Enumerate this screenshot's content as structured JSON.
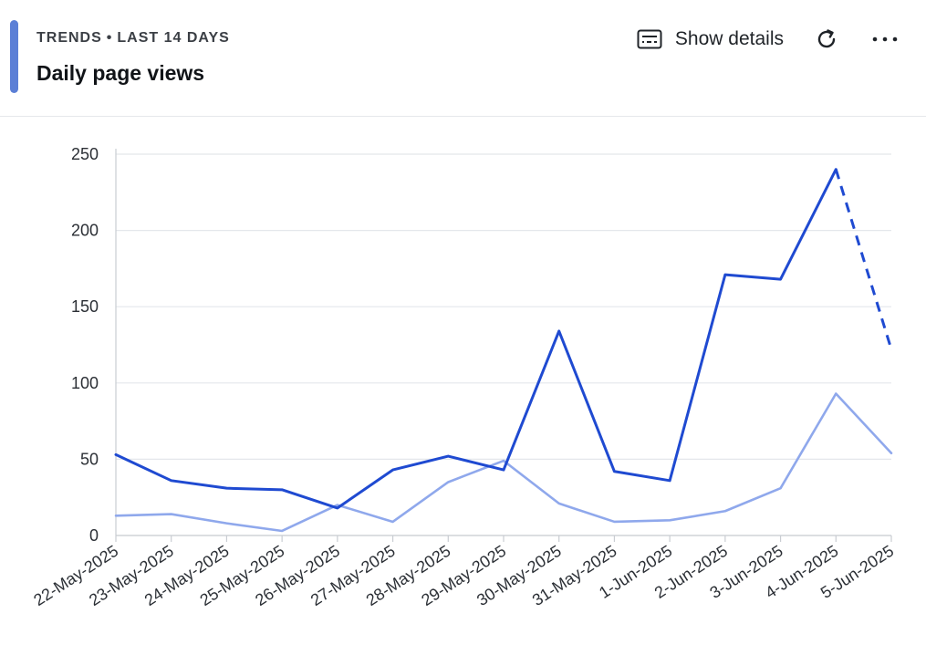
{
  "header": {
    "eyebrow_part1": "TRENDS",
    "eyebrow_dot": "•",
    "eyebrow_part2": "LAST 14 DAYS",
    "title": "Daily page views",
    "show_details_label": "Show details",
    "icons": {
      "show_details": "details-card-icon",
      "refresh": "refresh-icon",
      "more": "more-horizontal-icon"
    },
    "accent_color": "#5b7fd6"
  },
  "chart_data": {
    "type": "line",
    "title": "Daily page views",
    "xlabel": "",
    "ylabel": "",
    "ylim": [
      0,
      250
    ],
    "yticks": [
      0,
      50,
      100,
      150,
      200,
      250
    ],
    "grid": true,
    "legend": "none",
    "categories": [
      "22-May-2025",
      "23-May-2025",
      "24-May-2025",
      "25-May-2025",
      "26-May-2025",
      "27-May-2025",
      "28-May-2025",
      "29-May-2025",
      "30-May-2025",
      "31-May-2025",
      "1-Jun-2025",
      "2-Jun-2025",
      "3-Jun-2025",
      "4-Jun-2025",
      "5-Jun-2025"
    ],
    "series": [
      {
        "color": "#1f4ad1",
        "values": [
          53,
          36,
          31,
          30,
          18,
          43,
          52,
          43,
          134,
          42,
          36,
          171,
          168,
          240,
          122
        ],
        "dashed_from_index": 13
      },
      {
        "color": "#8fa8ec",
        "values": [
          13,
          14,
          8,
          3,
          20,
          9,
          35,
          49,
          21,
          9,
          10,
          16,
          31,
          93,
          54
        ]
      }
    ]
  }
}
